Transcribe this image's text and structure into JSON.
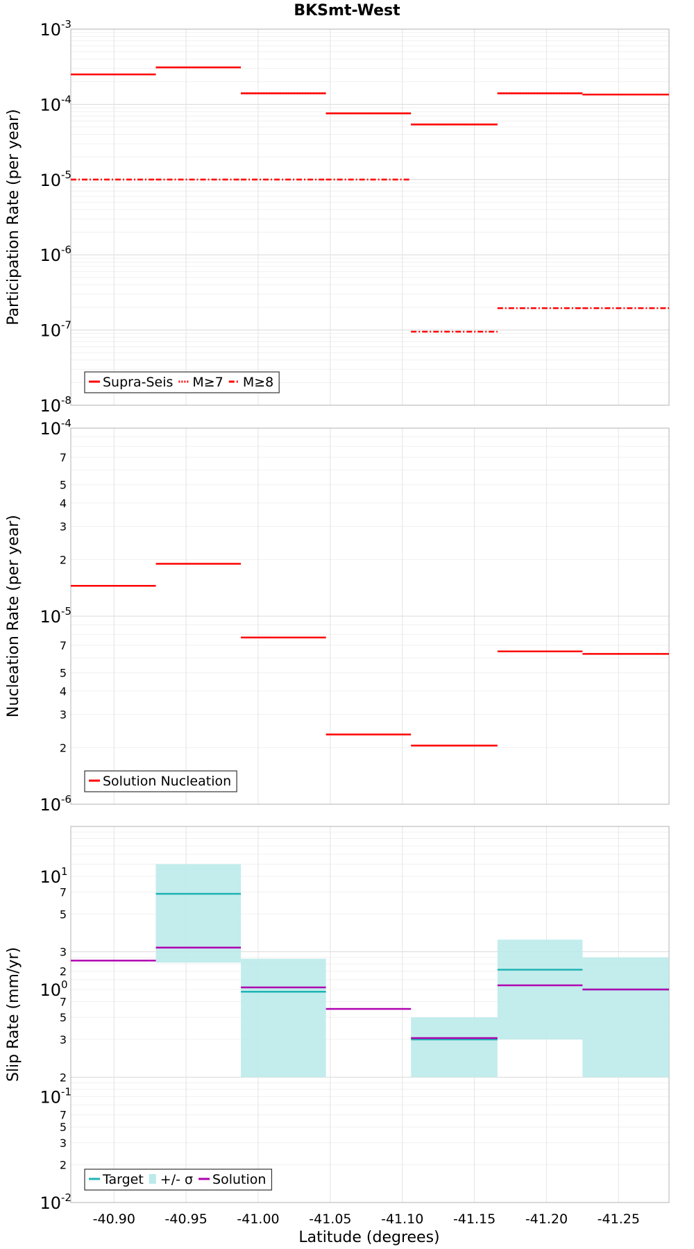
{
  "title": "BKSmt-West",
  "x_axis": {
    "label": "Latitude (degrees)",
    "range": [
      -40.87,
      -41.285
    ],
    "ticks": [
      "-40.90",
      "-40.95",
      "-41.00",
      "-41.05",
      "-41.10",
      "-41.15",
      "-41.20",
      "-41.25"
    ],
    "tick_values": [
      -40.9,
      -40.95,
      -41.0,
      -41.05,
      -41.1,
      -41.15,
      -41.2,
      -41.25
    ]
  },
  "chart_data": [
    {
      "type": "line",
      "ylabel": "Participation Rate (per year)",
      "yscale": "log",
      "ylim": [
        1e-08,
        0.001
      ],
      "y_ticks": [
        {
          "base": "10",
          "exp": "-8"
        },
        {
          "base": "10",
          "exp": "-7"
        },
        {
          "base": "10",
          "exp": "-6"
        },
        {
          "base": "10",
          "exp": "-5"
        },
        {
          "base": "10",
          "exp": "-4"
        },
        {
          "base": "10",
          "exp": "-3"
        }
      ],
      "grid": true,
      "legend_position": "bottom-left",
      "segments": [
        -40.87,
        -40.929,
        -40.988,
        -41.047,
        -41.106,
        -41.166,
        -41.225,
        -41.285
      ],
      "series": [
        {
          "name": "Supra-Seis",
          "style": "solid",
          "color": "#ff0000",
          "values": [
            0.00025,
            0.00031,
            0.00014,
            7.6e-05,
            5.4e-05,
            0.00014,
            0.000135
          ]
        },
        {
          "name": "M≥7",
          "style": "dotted",
          "color": "#ff0000",
          "values": [
            0.00025,
            0.00031,
            0.00014,
            7.6e-05,
            5.4e-05,
            0.00014,
            0.000135
          ]
        },
        {
          "name": "M≥8",
          "style": "dashdot",
          "color": "#ff0000",
          "values": [
            1e-05,
            1e-05,
            1e-05,
            1e-05,
            9.5e-08,
            1.95e-07,
            1.95e-07
          ]
        }
      ]
    },
    {
      "type": "line",
      "ylabel": "Nucleation Rate (per year)",
      "yscale": "log",
      "ylim": [
        1e-06,
        0.0001
      ],
      "y_ticks": [
        {
          "base": "10",
          "exp": "-6"
        },
        {
          "base": "2",
          "exp": ""
        },
        {
          "base": "3",
          "exp": ""
        },
        {
          "base": "4",
          "exp": ""
        },
        {
          "base": "5",
          "exp": ""
        },
        {
          "base": "7",
          "exp": ""
        },
        {
          "base": "10",
          "exp": "-5"
        },
        {
          "base": "2",
          "exp": ""
        },
        {
          "base": "3",
          "exp": ""
        },
        {
          "base": "4",
          "exp": ""
        },
        {
          "base": "5",
          "exp": ""
        },
        {
          "base": "7",
          "exp": ""
        },
        {
          "base": "10",
          "exp": "-4"
        }
      ],
      "grid": true,
      "legend_position": "bottom-left",
      "segments": [
        -40.87,
        -40.929,
        -40.988,
        -41.047,
        -41.106,
        -41.166,
        -41.225,
        -41.285
      ],
      "series": [
        {
          "name": "Solution Nucleation",
          "style": "solid",
          "color": "#ff0000",
          "values": [
            1.45e-05,
            1.9e-05,
            7.7e-06,
            2.35e-06,
            2.05e-06,
            6.5e-06,
            6.3e-06
          ]
        }
      ]
    },
    {
      "type": "line",
      "ylabel": "Slip Rate (mm/yr)",
      "yscale": "log",
      "ylim": [
        0.01,
        10
      ],
      "y_ticks": [
        {
          "base": "10",
          "exp": "-2"
        },
        {
          "base": "2",
          "exp": ""
        },
        {
          "base": "3",
          "exp": ""
        },
        {
          "base": "5",
          "exp": ""
        },
        {
          "base": "7",
          "exp": ""
        },
        {
          "base": "10",
          "exp": "-1"
        },
        {
          "base": "2",
          "exp": ""
        },
        {
          "base": "3",
          "exp": ""
        },
        {
          "base": "5",
          "exp": ""
        },
        {
          "base": "7",
          "exp": ""
        },
        {
          "base": "10",
          "exp": "0"
        },
        {
          "base": "2",
          "exp": ""
        },
        {
          "base": "3",
          "exp": ""
        },
        {
          "base": "5",
          "exp": ""
        },
        {
          "base": "7",
          "exp": ""
        },
        {
          "base": "10",
          "exp": "1"
        }
      ],
      "grid": true,
      "legend_position": "bottom-left",
      "segments": [
        -40.87,
        -40.929,
        -40.988,
        -41.047,
        -41.106,
        -41.166,
        -41.225,
        -41.285
      ],
      "series": [
        {
          "name": "Target",
          "style": "solid",
          "color": "#1fb3b3",
          "values": [
            null,
            2.9,
            0.48,
            null,
            0.2,
            0.72,
            0.5
          ]
        },
        {
          "name": "+/- σ",
          "style": "band",
          "color": "#bdeaea",
          "lower": [
            null,
            0.82,
            0.1,
            null,
            0.1,
            0.2,
            0.1
          ],
          "upper": [
            null,
            5.0,
            0.88,
            null,
            0.3,
            1.25,
            0.9
          ]
        },
        {
          "name": "Solution",
          "style": "solid",
          "color": "#b000b0",
          "values": [
            0.85,
            1.08,
            0.52,
            0.35,
            0.205,
            0.54,
            0.5
          ]
        }
      ]
    }
  ]
}
